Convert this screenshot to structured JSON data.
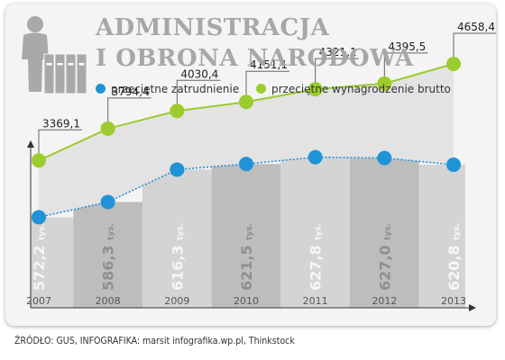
{
  "header": {
    "title_line1": "ADMINISTRACJA",
    "title_line2": "I OBRONA NARODOWA"
  },
  "icon": "office-worker-with-binders-icon",
  "legend": {
    "employment": "przeciętne zatrudnienie",
    "salary": "przeciętne wynagrodzenie brutto"
  },
  "colors": {
    "employment": "#1f93d6",
    "salary": "#9ccb2e",
    "title": "#a7a7a7"
  },
  "chart_data": {
    "type": "line",
    "x": [
      "2007",
      "2008",
      "2009",
      "2010",
      "2011",
      "2012",
      "2013"
    ],
    "series": [
      {
        "name": "przeciętne wynagrodzenie brutto",
        "values": [
          3369.1,
          3794.4,
          4030.4,
          4151.1,
          4321.1,
          4395.5,
          4658.4
        ],
        "labels": [
          "3369,1",
          "3794,4",
          "4030,4",
          "4151,1",
          "4321,1",
          "4395,5",
          "4658,4"
        ]
      },
      {
        "name": "przeciętne zatrudnienie",
        "values": [
          572.2,
          586.3,
          616.3,
          621.5,
          627.8,
          627.0,
          620.8
        ],
        "labels": [
          "572,2",
          "586,3",
          "616,3",
          "621,5",
          "627,8",
          "627,0",
          "620,8"
        ],
        "unit": "tys."
      }
    ],
    "grid": false
  },
  "source": "ŹRÓDŁO: GUS, INFOGRAFIKA: marsit infografika.wp.pl, Thinkstock"
}
